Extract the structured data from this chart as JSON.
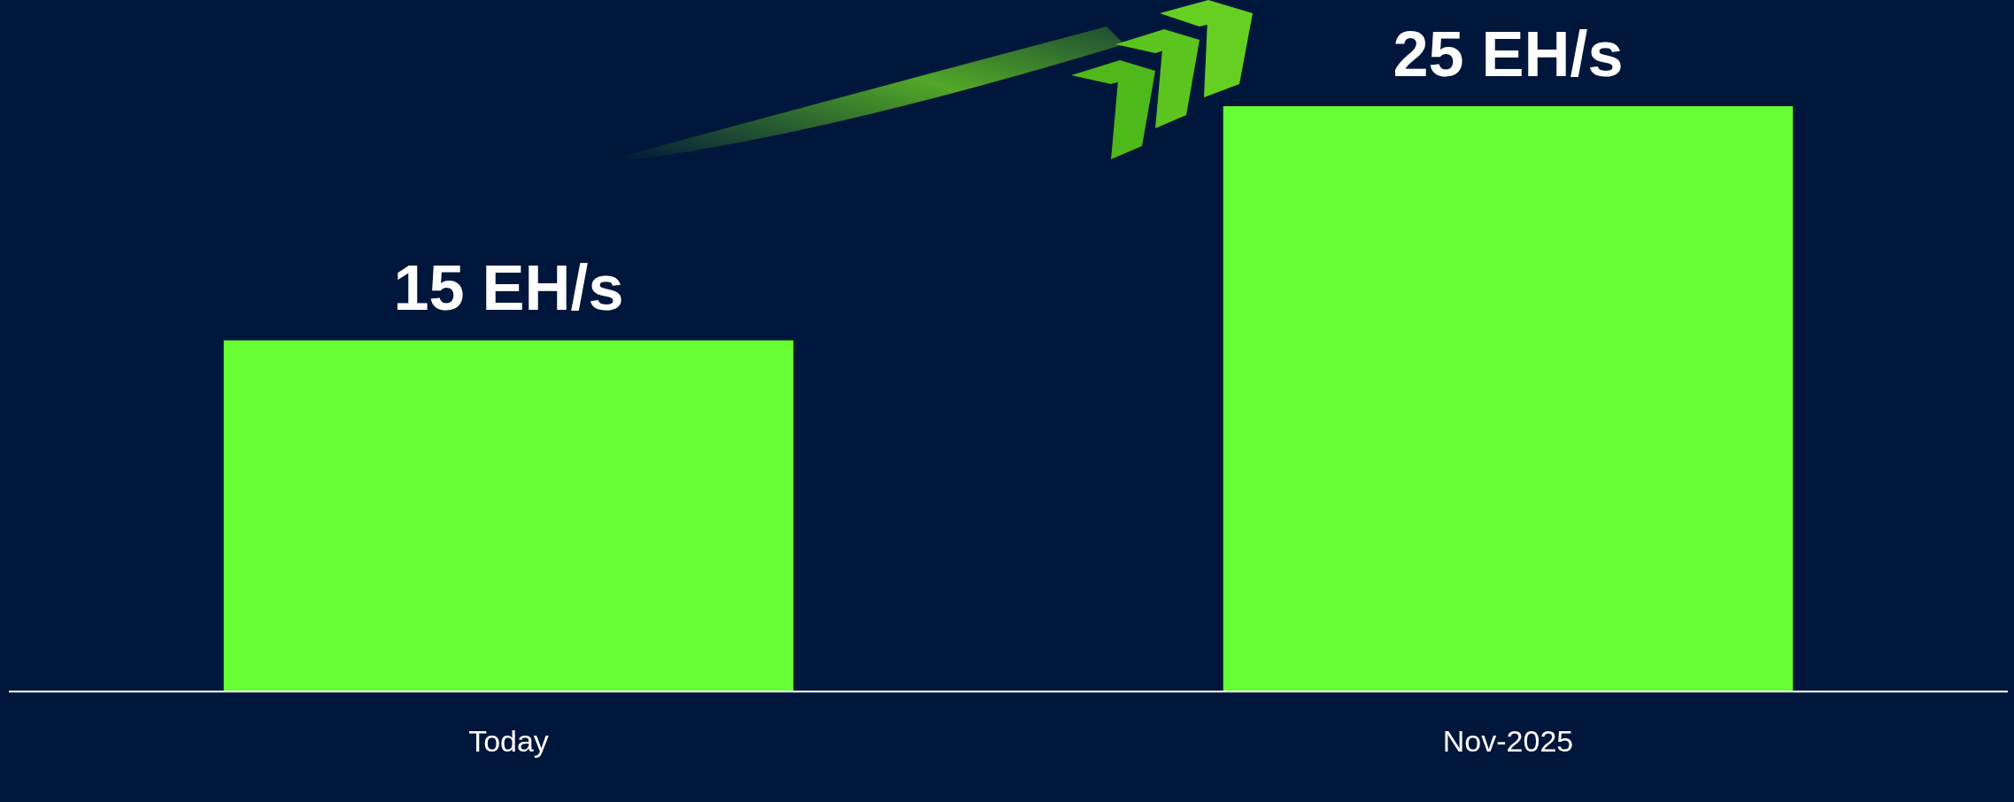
{
  "chart_data": {
    "type": "bar",
    "categories": [
      "Today",
      "Nov-2025"
    ],
    "values": [
      15,
      25
    ],
    "color": "#66ff33",
    "value_labels": [
      "15 EH/s",
      "25 EH/s"
    ],
    "grid": false,
    "legend": false
  }
}
